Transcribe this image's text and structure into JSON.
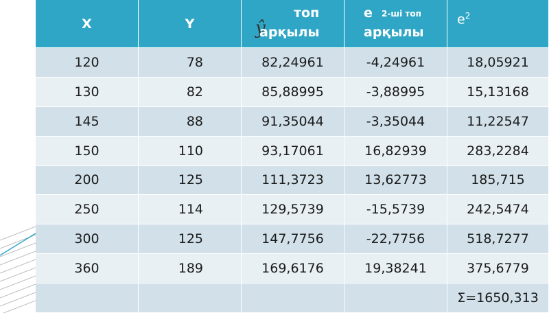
{
  "table": {
    "header_symbol": "ŷ",
    "header": [
      "X",
      "Y",
      [
        "топ",
        "арқылы"
      ],
      [
        "e",
        "2-ші топ",
        "арқылы"
      ],
      [
        "e",
        "2"
      ]
    ],
    "rows": [
      [
        "120",
        "78",
        "82,24961",
        "-4,24961",
        "18,05921"
      ],
      [
        "130",
        "82",
        "85,88995",
        "-3,88995",
        "15,13168"
      ],
      [
        "145",
        "88",
        "91,35044",
        "-3,35044",
        "11,22547"
      ],
      [
        "150",
        "110",
        "93,17061",
        "16,82939",
        "283,2284"
      ],
      [
        "200",
        "125",
        "111,3723",
        "13,62773",
        "185,715"
      ],
      [
        "250",
        "114",
        "129,5739",
        "-15,5739",
        "242,5474"
      ],
      [
        "300",
        "125",
        "147,7756",
        "-22,7756",
        "518,7277"
      ],
      [
        "360",
        "189",
        "169,6176",
        "19,38241",
        "375,6779"
      ]
    ],
    "total": "Σ=1650,313"
  }
}
